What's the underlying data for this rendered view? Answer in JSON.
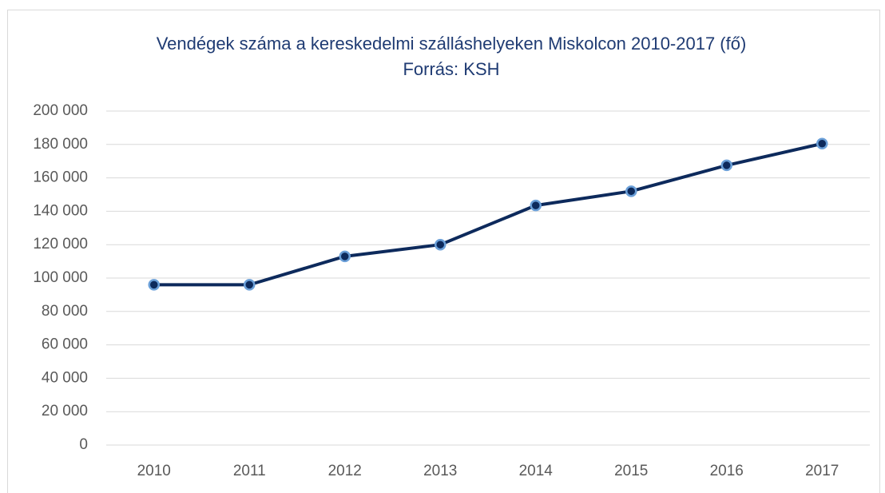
{
  "chart_data": {
    "type": "line",
    "title": "Vendégek száma a kereskedelmi szálláshelyeken Miskolcon 2010-2017 (fő)",
    "subtitle": "Forrás: KSH",
    "categories": [
      "2010",
      "2011",
      "2012",
      "2013",
      "2014",
      "2015",
      "2016",
      "2017"
    ],
    "series": [
      {
        "name": "Vendégek száma",
        "color": "#0d2a5c",
        "marker_edge_color": "#6a9fd8",
        "values": [
          96000,
          96000,
          113000,
          120000,
          143500,
          152000,
          167500,
          180500
        ]
      }
    ],
    "ylim": [
      0,
      200000
    ],
    "yticks": [
      0,
      {
        "value": 20000,
        "label": "20 000"
      },
      {
        "value": 40000,
        "label": "40 000"
      },
      {
        "value": 60000,
        "label": "60 000"
      },
      {
        "value": 80000,
        "label": "80 000"
      },
      {
        "value": 100000,
        "label": "100 000"
      },
      {
        "value": 120000,
        "label": "120 000"
      },
      {
        "value": 140000,
        "label": "140 000"
      },
      {
        "value": 160000,
        "label": "160 000"
      },
      {
        "value": 180000,
        "label": "180 000"
      },
      {
        "value": 200000,
        "label": "200 000"
      }
    ],
    "grid": true,
    "legend": false
  }
}
